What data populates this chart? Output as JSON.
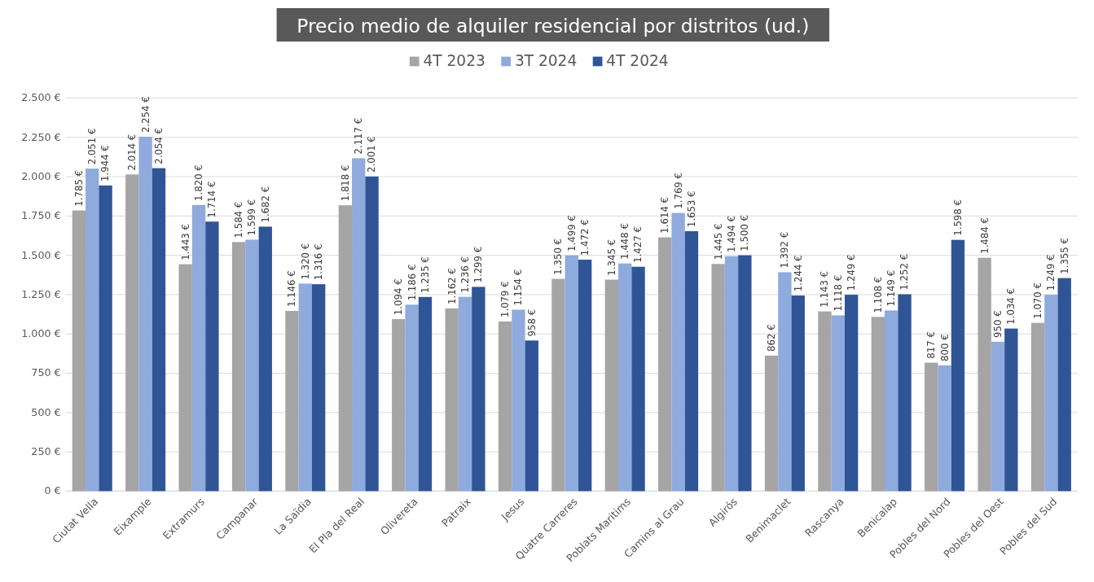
{
  "chart_data": {
    "type": "bar",
    "title": "Precio medio de alquiler residencial por distritos (ud.)",
    "categories": [
      "Ciutat Vella",
      "Eixample",
      "Extramurs",
      "Campanar",
      "La Saïdia",
      "El Pla del Real",
      "Olivereta",
      "Patraix",
      "Jesus",
      "Quatre Carreres",
      "Poblats Maritims",
      "Camins al Grau",
      "Algirós",
      "Benimaclet",
      "Rascanya",
      "Benicalap",
      "Pobles del Nord",
      "Pobles del Oest",
      "Pobles del Sud"
    ],
    "series": [
      {
        "name": "4T 2023",
        "color": "#a5a5a5",
        "values": [
          1785,
          2014,
          1443,
          1584,
          1146,
          1818,
          1094,
          1162,
          1079,
          1350,
          1345,
          1614,
          1445,
          862,
          1143,
          1108,
          817,
          1484,
          1070
        ],
        "value_labels": [
          "1.785 €",
          "2.014 €",
          "1.443 €",
          "1.584 €",
          "1.146 €",
          "1.818 €",
          "1.094 €",
          "1.162 €",
          "1.079 €",
          "1.350 €",
          "1.345 €",
          "1.614 €",
          "1.445 €",
          "862 €",
          "1.143 €",
          "1.108 €",
          "817 €",
          "1.484 €",
          "1.070 €"
        ]
      },
      {
        "name": "3T 2024",
        "color": "#8faadc",
        "values": [
          2051,
          2254,
          1820,
          1599,
          1320,
          2117,
          1186,
          1236,
          1154,
          1499,
          1448,
          1769,
          1494,
          1392,
          1118,
          1149,
          800,
          950,
          1249
        ],
        "value_labels": [
          "2.051 €",
          "2.254 €",
          "1.820 €",
          "1.599 €",
          "1.320 €",
          "2.117 €",
          "1.186 €",
          "1.236 €",
          "1.154 €",
          "1.499 €",
          "1.448 €",
          "1.769 €",
          "1.494 €",
          "1.392 €",
          "1.118 €",
          "1.149 €",
          "800 €",
          "950 €",
          "1.249 €"
        ]
      },
      {
        "name": "4T 2024",
        "color": "#2f5597",
        "values": [
          1944,
          2054,
          1714,
          1682,
          1316,
          2001,
          1235,
          1299,
          958,
          1472,
          1427,
          1653,
          1500,
          1244,
          1249,
          1252,
          1598,
          1034,
          1355
        ],
        "value_labels": [
          "1.944 €",
          "2.054 €",
          "1.714 €",
          "1.682 €",
          "1.316 €",
          "2.001 €",
          "1.235 €",
          "1.299 €",
          "958 €",
          "1.472 €",
          "1.427 €",
          "1.653 €",
          "1.500 €",
          "1.244 €",
          "1.249 €",
          "1.252 €",
          "1.598 €",
          "1.034 €",
          "1.355 €"
        ]
      }
    ],
    "ylim": [
      0,
      2500
    ],
    "yticks": [
      {
        "value": 0,
        "label": "0 €"
      },
      {
        "value": 250,
        "label": "250 €"
      },
      {
        "value": 500,
        "label": "500 €"
      },
      {
        "value": 750,
        "label": "750 €"
      },
      {
        "value": 1000,
        "label": "1.000 €"
      },
      {
        "value": 1250,
        "label": "1.250 €"
      },
      {
        "value": 1500,
        "label": "1.500 €"
      },
      {
        "value": 1750,
        "label": "1.750 €"
      },
      {
        "value": 2000,
        "label": "2.000 €"
      },
      {
        "value": 2250,
        "label": "2.250 €"
      },
      {
        "value": 2500,
        "label": "2.500 €"
      }
    ],
    "grid": "y",
    "legend": "top"
  }
}
